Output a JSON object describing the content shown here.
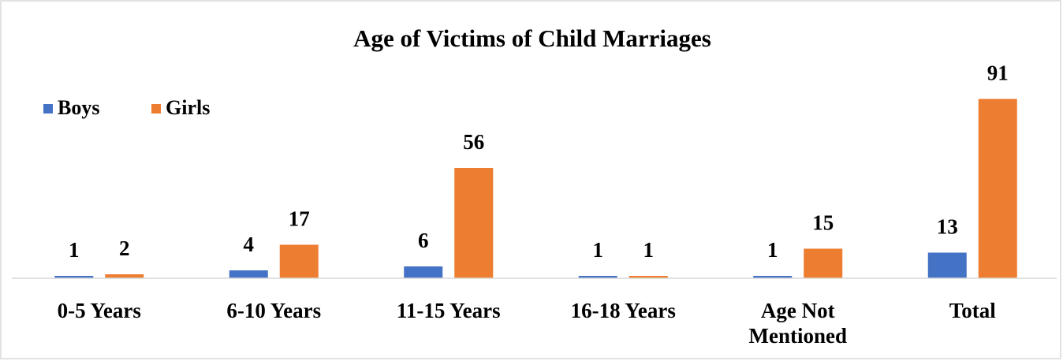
{
  "chart_data": {
    "type": "bar",
    "title": "Age of Victims of Child Marriages",
    "categories": [
      "0-5 Years",
      "6-10 Years",
      "11-15 Years",
      "16-18 Years",
      "Age Not Mentioned",
      "Total"
    ],
    "series": [
      {
        "name": "Boys",
        "color": "#4472c4",
        "values": [
          1,
          4,
          6,
          1,
          1,
          13
        ]
      },
      {
        "name": "Girls",
        "color": "#ed7d31",
        "values": [
          2,
          17,
          56,
          1,
          15,
          91
        ]
      }
    ],
    "ylim": [
      0,
      100
    ],
    "legend": "top-left"
  }
}
